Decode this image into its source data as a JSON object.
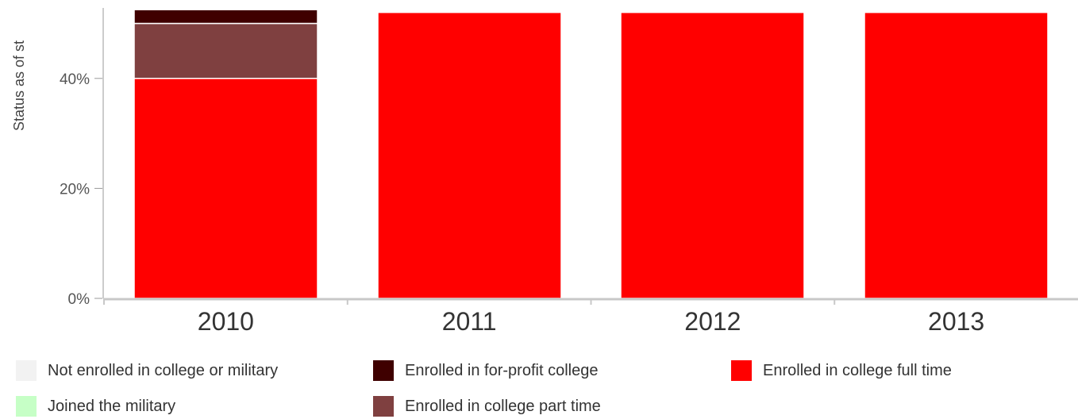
{
  "chart_data": {
    "type": "bar",
    "stacked": true,
    "ylabel": "Status as of st",
    "categories": [
      "2010",
      "2011",
      "2012",
      "2013"
    ],
    "y_ticks": [
      "0%",
      "20%",
      "40%"
    ],
    "ylim": [
      0,
      52
    ],
    "grid": false,
    "legend_position": "bottom",
    "series": [
      {
        "name": "Enrolled in college full time",
        "color": "#ff0000",
        "values": [
          40,
          52,
          52,
          52
        ]
      },
      {
        "name": "Enrolled in college part time",
        "color": "#7f4040",
        "values": [
          10,
          0,
          0,
          0
        ]
      },
      {
        "name": "Enrolled in for-profit college",
        "color": "#3f0000",
        "values": [
          2.5,
          0,
          0,
          0
        ]
      }
    ],
    "legend": [
      {
        "label": "Not enrolled in college or military",
        "color": "#f2f2f2"
      },
      {
        "label": "Enrolled in for-profit college",
        "color": "#3f0000"
      },
      {
        "label": "Enrolled in college full time",
        "color": "#ff0000"
      },
      {
        "label": "Joined the military",
        "color": "#c6ffc6"
      },
      {
        "label": "Enrolled in college part time",
        "color": "#7f4040"
      }
    ]
  }
}
